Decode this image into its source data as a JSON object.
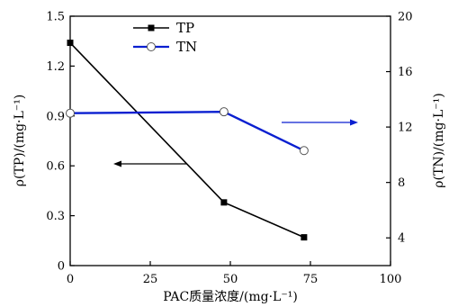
{
  "chart_data": {
    "type": "line",
    "xlabel": "PAC质量浓度/(mg·L⁻¹)",
    "xlim": [
      0,
      100
    ],
    "xticks": [
      "0",
      "25",
      "50",
      "75",
      "100"
    ],
    "y_left": {
      "label": "ρ(TP)/(mg·L⁻¹)",
      "lim": [
        0,
        1.5
      ],
      "ticks": [
        "0",
        "0.3",
        "0.6",
        "0.9",
        "1.2",
        "1.5"
      ]
    },
    "y_right": {
      "label": "ρ(TN)/(mg·L⁻¹)",
      "lim": [
        2,
        20
      ],
      "ticks": [
        "4",
        "8",
        "12",
        "16",
        "20"
      ]
    },
    "series": [
      {
        "name": "TP",
        "axis": "left",
        "color": "#000000",
        "marker": "square",
        "x": [
          0,
          48,
          73
        ],
        "y": [
          1.34,
          0.38,
          0.17
        ]
      },
      {
        "name": "TN",
        "axis": "right",
        "color": "#0a1fd0",
        "marker": "open-circle",
        "x": [
          0,
          48,
          73
        ],
        "y": [
          13.0,
          13.1,
          10.3
        ]
      }
    ],
    "annotations": [
      {
        "type": "arrow",
        "direction": "left",
        "color": "#000000",
        "points_to": "left-axis"
      },
      {
        "type": "arrow",
        "direction": "right",
        "color": "#0a1fd0",
        "points_to": "right-axis"
      }
    ],
    "legend": {
      "position": "top-left"
    },
    "grid": false
  }
}
